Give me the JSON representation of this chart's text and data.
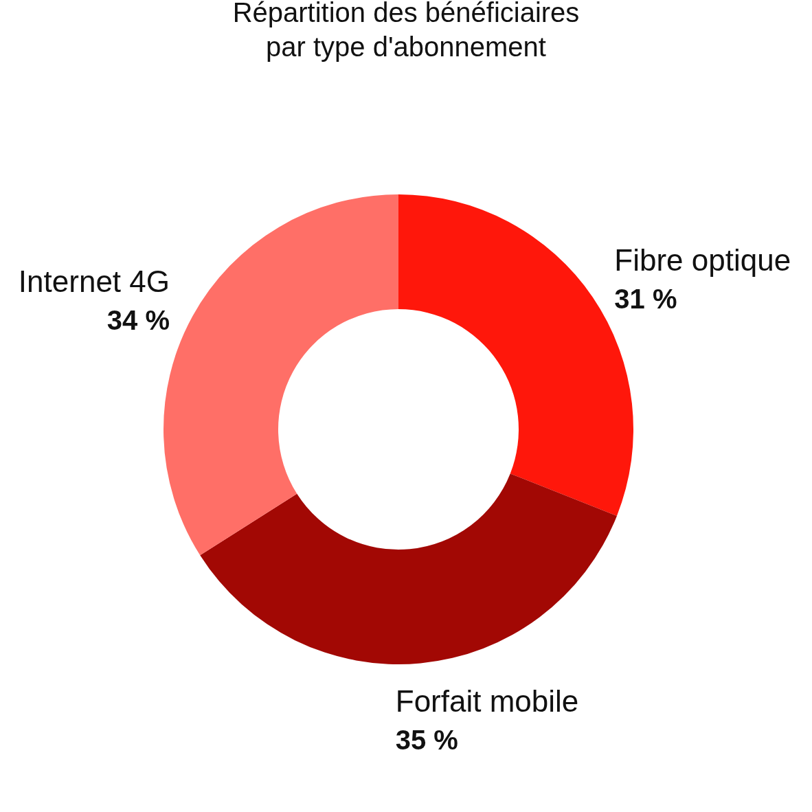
{
  "chart_data": {
    "type": "donut",
    "title": [
      "Répartition des bénéficiaires",
      "par type d'abonnement"
    ],
    "categories": [
      "Fibre optique",
      "Forfait mobile",
      "Internet 4G"
    ],
    "values": [
      31,
      35,
      34
    ],
    "colors": [
      "#ff170b",
      "#a20804",
      "#ff6f67"
    ],
    "value_labels": [
      "31 %",
      "35 %",
      "34 %"
    ],
    "legend": false
  }
}
